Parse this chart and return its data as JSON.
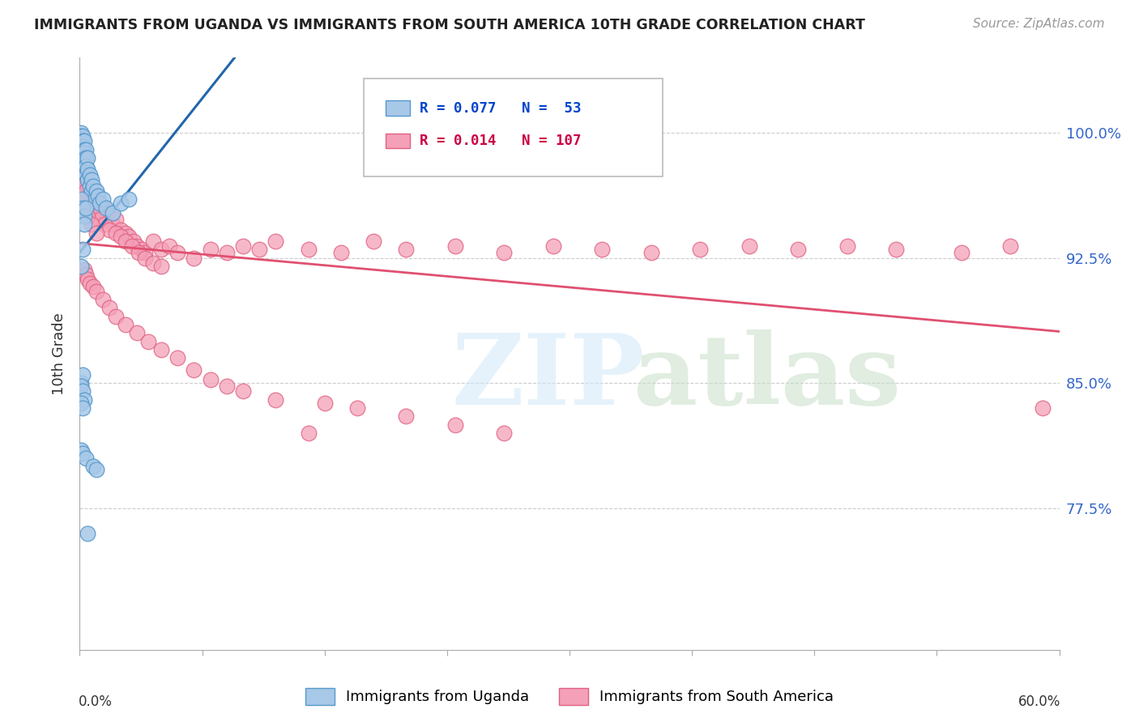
{
  "title": "IMMIGRANTS FROM UGANDA VS IMMIGRANTS FROM SOUTH AMERICA 10TH GRADE CORRELATION CHART",
  "source": "Source: ZipAtlas.com",
  "ylabel": "10th Grade",
  "ytick_labels": [
    "77.5%",
    "85.0%",
    "92.5%",
    "100.0%"
  ],
  "ytick_values": [
    0.775,
    0.85,
    0.925,
    1.0
  ],
  "xlim": [
    0.0,
    0.6
  ],
  "ylim": [
    0.69,
    1.045
  ],
  "legend_blue_r": "R = 0.077",
  "legend_blue_n": "N =  53",
  "legend_pink_r": "R = 0.014",
  "legend_pink_n": "N = 107",
  "legend_label_blue": "Immigrants from Uganda",
  "legend_label_pink": "Immigrants from South America",
  "blue_color": "#a8c8e8",
  "pink_color": "#f4a0b8",
  "blue_edge": "#5599cc",
  "pink_edge": "#e06080",
  "trendline_blue_color": "#2166ac",
  "trendline_pink_color": "#e05070",
  "watermark_zip": "ZIP",
  "watermark_atlas": "atlas",
  "watermark_color_zip": "#d0e8f8",
  "watermark_color_atlas": "#c8dfc8",
  "blue_x": [
    0.001,
    0.001,
    0.001,
    0.002,
    0.002,
    0.002,
    0.002,
    0.003,
    0.003,
    0.003,
    0.003,
    0.003,
    0.004,
    0.004,
    0.004,
    0.004,
    0.005,
    0.005,
    0.005,
    0.006,
    0.006,
    0.007,
    0.007,
    0.008,
    0.009,
    0.01,
    0.011,
    0.012,
    0.014,
    0.016,
    0.02,
    0.025,
    0.03,
    0.001,
    0.002,
    0.003,
    0.004,
    0.003,
    0.002,
    0.001,
    0.001,
    0.002,
    0.001,
    0.002,
    0.003,
    0.001,
    0.002,
    0.001,
    0.002,
    0.004,
    0.008,
    0.01,
    0.005
  ],
  "blue_y": [
    1.0,
    0.998,
    0.996,
    0.998,
    0.995,
    0.992,
    0.99,
    0.995,
    0.99,
    0.988,
    0.985,
    0.982,
    0.99,
    0.985,
    0.98,
    0.975,
    0.985,
    0.978,
    0.972,
    0.975,
    0.968,
    0.972,
    0.965,
    0.968,
    0.96,
    0.965,
    0.962,
    0.958,
    0.96,
    0.955,
    0.952,
    0.958,
    0.96,
    0.96,
    0.955,
    0.95,
    0.955,
    0.945,
    0.93,
    0.92,
    0.85,
    0.855,
    0.848,
    0.845,
    0.84,
    0.838,
    0.835,
    0.81,
    0.808,
    0.805,
    0.8,
    0.798,
    0.76
  ],
  "pink_x": [
    0.001,
    0.002,
    0.002,
    0.003,
    0.003,
    0.004,
    0.004,
    0.005,
    0.005,
    0.006,
    0.007,
    0.008,
    0.009,
    0.01,
    0.011,
    0.012,
    0.014,
    0.015,
    0.016,
    0.018,
    0.02,
    0.022,
    0.025,
    0.028,
    0.03,
    0.033,
    0.035,
    0.038,
    0.04,
    0.045,
    0.05,
    0.055,
    0.06,
    0.07,
    0.08,
    0.09,
    0.1,
    0.11,
    0.12,
    0.14,
    0.16,
    0.18,
    0.2,
    0.23,
    0.26,
    0.29,
    0.32,
    0.35,
    0.38,
    0.41,
    0.44,
    0.47,
    0.5,
    0.54,
    0.57,
    0.003,
    0.004,
    0.005,
    0.006,
    0.008,
    0.01,
    0.012,
    0.015,
    0.018,
    0.022,
    0.025,
    0.028,
    0.032,
    0.036,
    0.04,
    0.045,
    0.05,
    0.003,
    0.004,
    0.005,
    0.006,
    0.008,
    0.01,
    0.014,
    0.018,
    0.022,
    0.028,
    0.035,
    0.042,
    0.05,
    0.06,
    0.07,
    0.08,
    0.09,
    0.1,
    0.12,
    0.15,
    0.17,
    0.2,
    0.23,
    0.26,
    0.003,
    0.004,
    0.005,
    0.007,
    0.01,
    0.14,
    0.59
  ],
  "pink_y": [
    0.99,
    0.988,
    0.985,
    0.982,
    0.978,
    0.98,
    0.975,
    0.972,
    0.968,
    0.97,
    0.965,
    0.962,
    0.958,
    0.96,
    0.955,
    0.958,
    0.952,
    0.955,
    0.948,
    0.95,
    0.945,
    0.948,
    0.942,
    0.94,
    0.938,
    0.935,
    0.932,
    0.93,
    0.928,
    0.935,
    0.93,
    0.932,
    0.928,
    0.925,
    0.93,
    0.928,
    0.932,
    0.93,
    0.935,
    0.93,
    0.928,
    0.935,
    0.93,
    0.932,
    0.928,
    0.932,
    0.93,
    0.928,
    0.93,
    0.932,
    0.93,
    0.932,
    0.93,
    0.928,
    0.932,
    0.97,
    0.965,
    0.96,
    0.958,
    0.955,
    0.952,
    0.948,
    0.945,
    0.942,
    0.94,
    0.938,
    0.935,
    0.932,
    0.928,
    0.925,
    0.922,
    0.92,
    0.918,
    0.915,
    0.912,
    0.91,
    0.908,
    0.905,
    0.9,
    0.895,
    0.89,
    0.885,
    0.88,
    0.875,
    0.87,
    0.865,
    0.858,
    0.852,
    0.848,
    0.845,
    0.84,
    0.838,
    0.835,
    0.83,
    0.825,
    0.82,
    0.96,
    0.955,
    0.95,
    0.945,
    0.94,
    0.82,
    0.835
  ]
}
